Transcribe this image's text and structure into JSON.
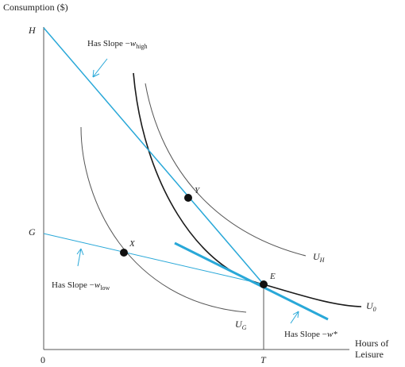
{
  "axes": {
    "ylabel": "Consumption ($)",
    "xlabel_line1": "Hours of",
    "xlabel_line2": "Leisure",
    "origin": "0"
  },
  "points": {
    "H": "H",
    "G": "G",
    "T": "T",
    "X": "X",
    "Y": "Y",
    "E": "E"
  },
  "curves": {
    "U_H": {
      "main": "U",
      "sub": "H"
    },
    "U_0": {
      "main": "U",
      "sub": "0"
    },
    "U_G": {
      "main": "U",
      "sub": "G"
    }
  },
  "annotations": {
    "high": {
      "prefix": "Has Slope −",
      "var": "w",
      "sub": "high"
    },
    "low": {
      "prefix": "Has Slope −",
      "var": "w",
      "sub": "low"
    },
    "star": {
      "prefix": "Has Slope −",
      "var": "w*"
    }
  },
  "colors": {
    "budget": "#29a8d8",
    "curve_dark": "#1a1a1a",
    "curve_light": "#555555",
    "axis": "#555555",
    "text": "#222222"
  }
}
